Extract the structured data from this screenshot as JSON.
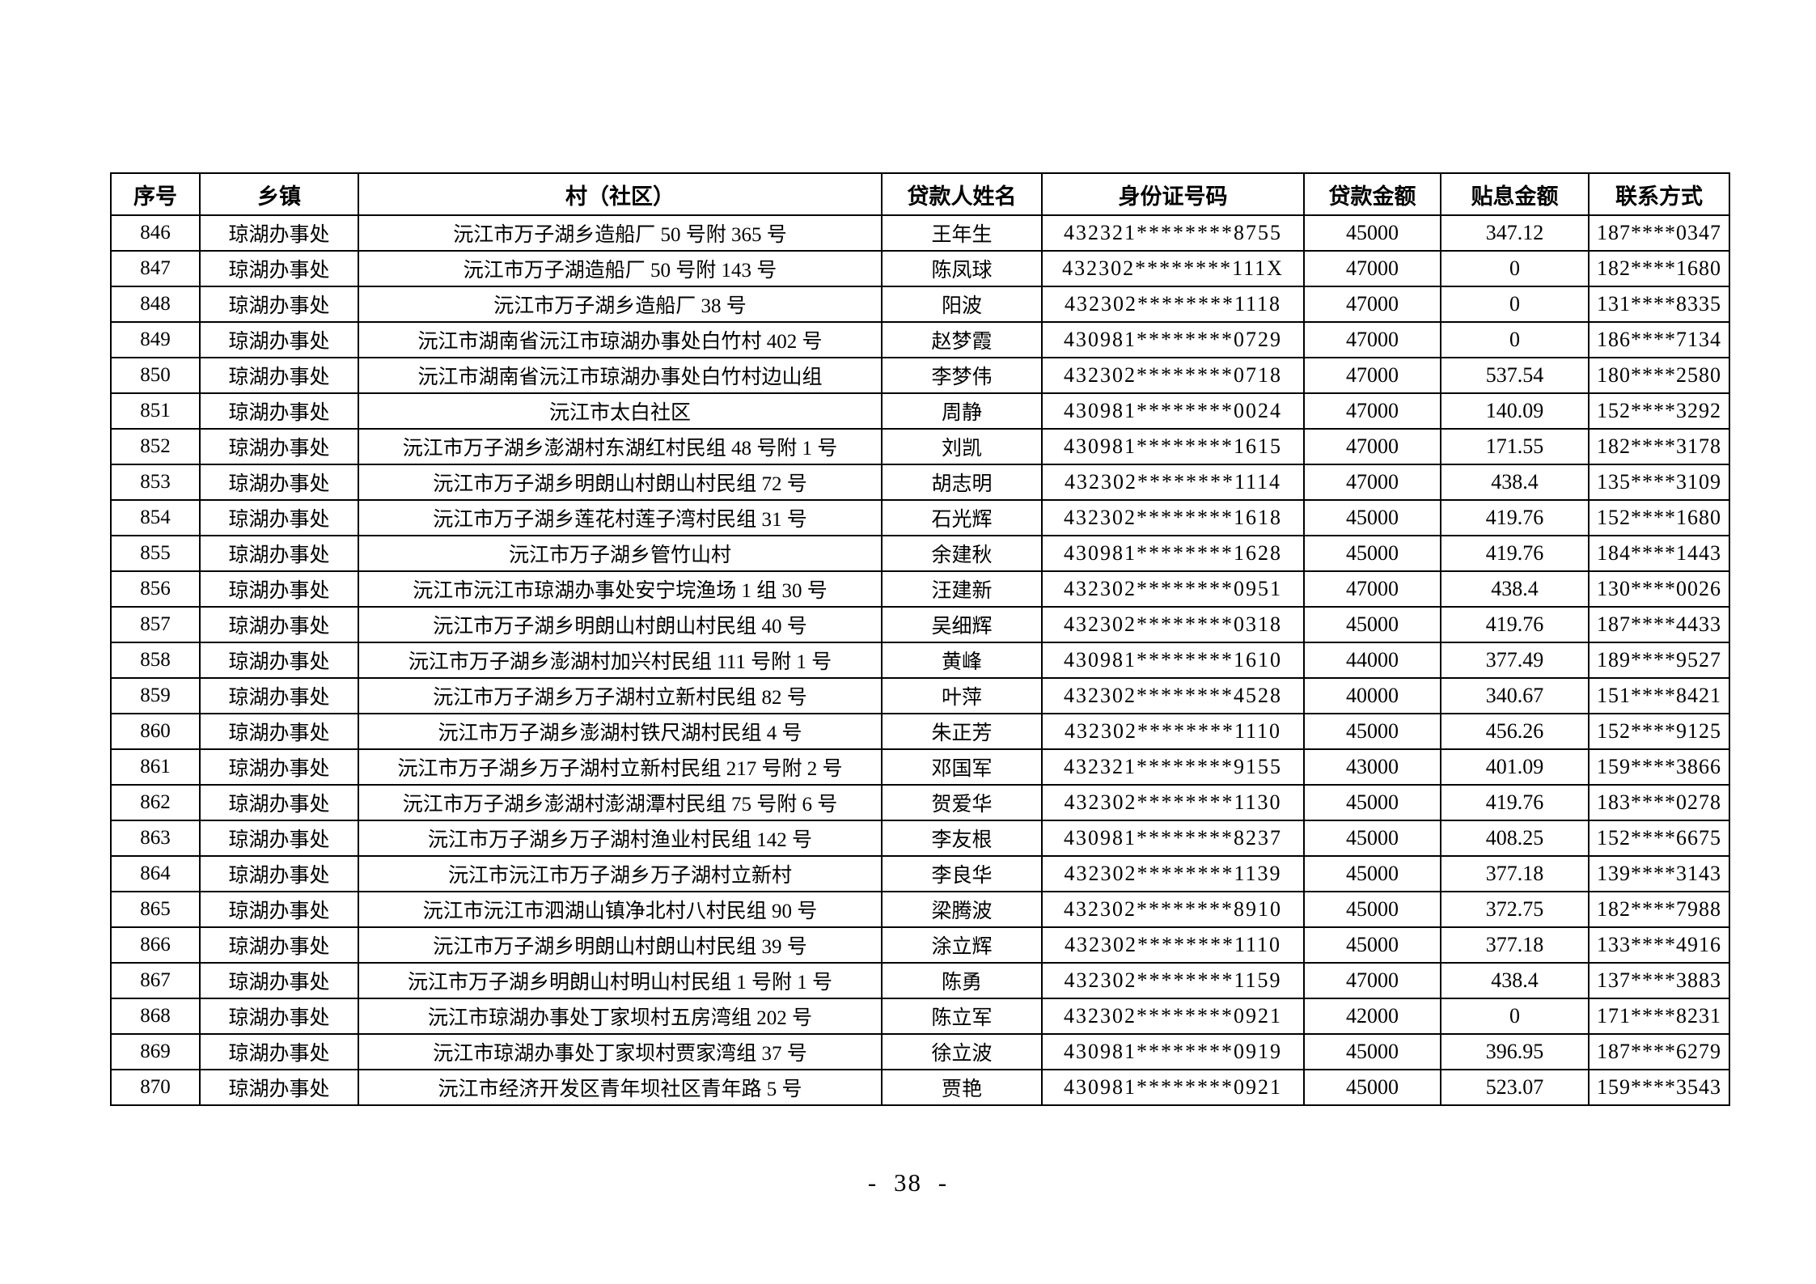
{
  "page": {
    "footer_page_number": "- 38 -"
  },
  "table": {
    "columns": [
      "序号",
      "乡镇",
      "村（社区）",
      "贷款人姓名",
      "身份证号码",
      "贷款金额",
      "贴息金额",
      "联系方式"
    ],
    "rows": [
      [
        "846",
        "琼湖办事处",
        "沅江市万子湖乡造船厂 50 号附 365 号",
        "王年生",
        "432321********8755",
        "45000",
        "347.12",
        "187****0347"
      ],
      [
        "847",
        "琼湖办事处",
        "沅江市万子湖造船厂 50 号附 143 号",
        "陈凤球",
        "432302********111X",
        "47000",
        "0",
        "182****1680"
      ],
      [
        "848",
        "琼湖办事处",
        "沅江市万子湖乡造船厂 38 号",
        "阳波",
        "432302********1118",
        "47000",
        "0",
        "131****8335"
      ],
      [
        "849",
        "琼湖办事处",
        "沅江市湖南省沅江市琼湖办事处白竹村 402 号",
        "赵梦霞",
        "430981********0729",
        "47000",
        "0",
        "186****7134"
      ],
      [
        "850",
        "琼湖办事处",
        "沅江市湖南省沅江市琼湖办事处白竹村边山组",
        "李梦伟",
        "432302********0718",
        "47000",
        "537.54",
        "180****2580"
      ],
      [
        "851",
        "琼湖办事处",
        "沅江市太白社区",
        "周静",
        "430981********0024",
        "47000",
        "140.09",
        "152****3292"
      ],
      [
        "852",
        "琼湖办事处",
        "沅江市万子湖乡澎湖村东湖红村民组 48 号附 1 号",
        "刘凯",
        "430981********1615",
        "47000",
        "171.55",
        "182****3178"
      ],
      [
        "853",
        "琼湖办事处",
        "沅江市万子湖乡明朗山村朗山村民组 72 号",
        "胡志明",
        "432302********1114",
        "47000",
        "438.4",
        "135****3109"
      ],
      [
        "854",
        "琼湖办事处",
        "沅江市万子湖乡莲花村莲子湾村民组 31 号",
        "石光辉",
        "432302********1618",
        "45000",
        "419.76",
        "152****1680"
      ],
      [
        "855",
        "琼湖办事处",
        "沅江市万子湖乡管竹山村",
        "余建秋",
        "430981********1628",
        "45000",
        "419.76",
        "184****1443"
      ],
      [
        "856",
        "琼湖办事处",
        "沅江市沅江市琼湖办事处安宁垸渔场 1 组 30 号",
        "汪建新",
        "432302********0951",
        "47000",
        "438.4",
        "130****0026"
      ],
      [
        "857",
        "琼湖办事处",
        "沅江市万子湖乡明朗山村朗山村民组 40 号",
        "吴细辉",
        "432302********0318",
        "45000",
        "419.76",
        "187****4433"
      ],
      [
        "858",
        "琼湖办事处",
        "沅江市万子湖乡澎湖村加兴村民组 111 号附 1 号",
        "黄峰",
        "430981********1610",
        "44000",
        "377.49",
        "189****9527"
      ],
      [
        "859",
        "琼湖办事处",
        "沅江市万子湖乡万子湖村立新村民组 82 号",
        "叶萍",
        "432302********4528",
        "40000",
        "340.67",
        "151****8421"
      ],
      [
        "860",
        "琼湖办事处",
        "沅江市万子湖乡澎湖村铁尺湖村民组 4 号",
        "朱正芳",
        "432302********1110",
        "45000",
        "456.26",
        "152****9125"
      ],
      [
        "861",
        "琼湖办事处",
        "沅江市万子湖乡万子湖村立新村民组 217 号附 2 号",
        "邓国军",
        "432321********9155",
        "43000",
        "401.09",
        "159****3866"
      ],
      [
        "862",
        "琼湖办事处",
        "沅江市万子湖乡澎湖村澎湖潭村民组 75 号附 6 号",
        "贺爱华",
        "432302********1130",
        "45000",
        "419.76",
        "183****0278"
      ],
      [
        "863",
        "琼湖办事处",
        "沅江市万子湖乡万子湖村渔业村民组 142 号",
        "李友根",
        "430981********8237",
        "45000",
        "408.25",
        "152****6675"
      ],
      [
        "864",
        "琼湖办事处",
        "沅江市沅江市万子湖乡万子湖村立新村",
        "李良华",
        "432302********1139",
        "45000",
        "377.18",
        "139****3143"
      ],
      [
        "865",
        "琼湖办事处",
        "沅江市沅江市泗湖山镇净北村八村民组 90 号",
        "梁腾波",
        "432302********8910",
        "45000",
        "372.75",
        "182****7988"
      ],
      [
        "866",
        "琼湖办事处",
        "沅江市万子湖乡明朗山村朗山村民组 39 号",
        "涂立辉",
        "432302********1110",
        "45000",
        "377.18",
        "133****4916"
      ],
      [
        "867",
        "琼湖办事处",
        "沅江市万子湖乡明朗山村明山村民组 1 号附 1 号",
        "陈勇",
        "432302********1159",
        "47000",
        "438.4",
        "137****3883"
      ],
      [
        "868",
        "琼湖办事处",
        "沅江市琼湖办事处丁家坝村五房湾组 202 号",
        "陈立军",
        "432302********0921",
        "42000",
        "0",
        "171****8231"
      ],
      [
        "869",
        "琼湖办事处",
        "沅江市琼湖办事处丁家坝村贾家湾组 37 号",
        "徐立波",
        "430981********0919",
        "45000",
        "396.95",
        "187****6279"
      ],
      [
        "870",
        "琼湖办事处",
        "沅江市经济开发区青年坝社区青年路 5 号",
        "贾艳",
        "430981********0921",
        "45000",
        "523.07",
        "159****3543"
      ]
    ]
  }
}
